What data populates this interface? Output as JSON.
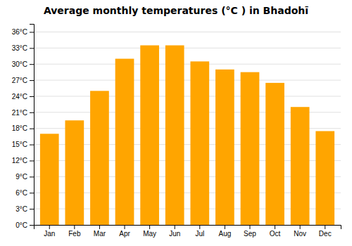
{
  "chart_data": {
    "type": "bar",
    "title": "Average monthly temperatures (°C ) in Bhadohī",
    "categories": [
      "Jan",
      "Feb",
      "Mar",
      "Apr",
      "May",
      "Jun",
      "Jul",
      "Aug",
      "Sep",
      "Oct",
      "Nov",
      "Dec"
    ],
    "values": [
      17,
      19.5,
      25,
      31,
      33.5,
      33.5,
      30.5,
      29,
      28.5,
      26.5,
      22,
      17.5
    ],
    "color": "#FFA500",
    "ylim": [
      0,
      37.5
    ],
    "yticks": [
      {
        "value": 0,
        "label": "0°C"
      },
      {
        "value": 3,
        "label": "3°C"
      },
      {
        "value": 6,
        "label": "6°C"
      },
      {
        "value": 9,
        "label": "9°C"
      },
      {
        "value": 12,
        "label": "12°C"
      },
      {
        "value": 15,
        "label": "15°C"
      },
      {
        "value": 18,
        "label": "18°C"
      },
      {
        "value": 21,
        "label": "21°C"
      },
      {
        "value": 24,
        "label": "24°C"
      },
      {
        "value": 27,
        "label": "27°C"
      },
      {
        "value": 30,
        "label": "30°C"
      },
      {
        "value": 33,
        "label": "33°C"
      },
      {
        "value": 36,
        "label": "36°C"
      }
    ],
    "grid": true
  }
}
